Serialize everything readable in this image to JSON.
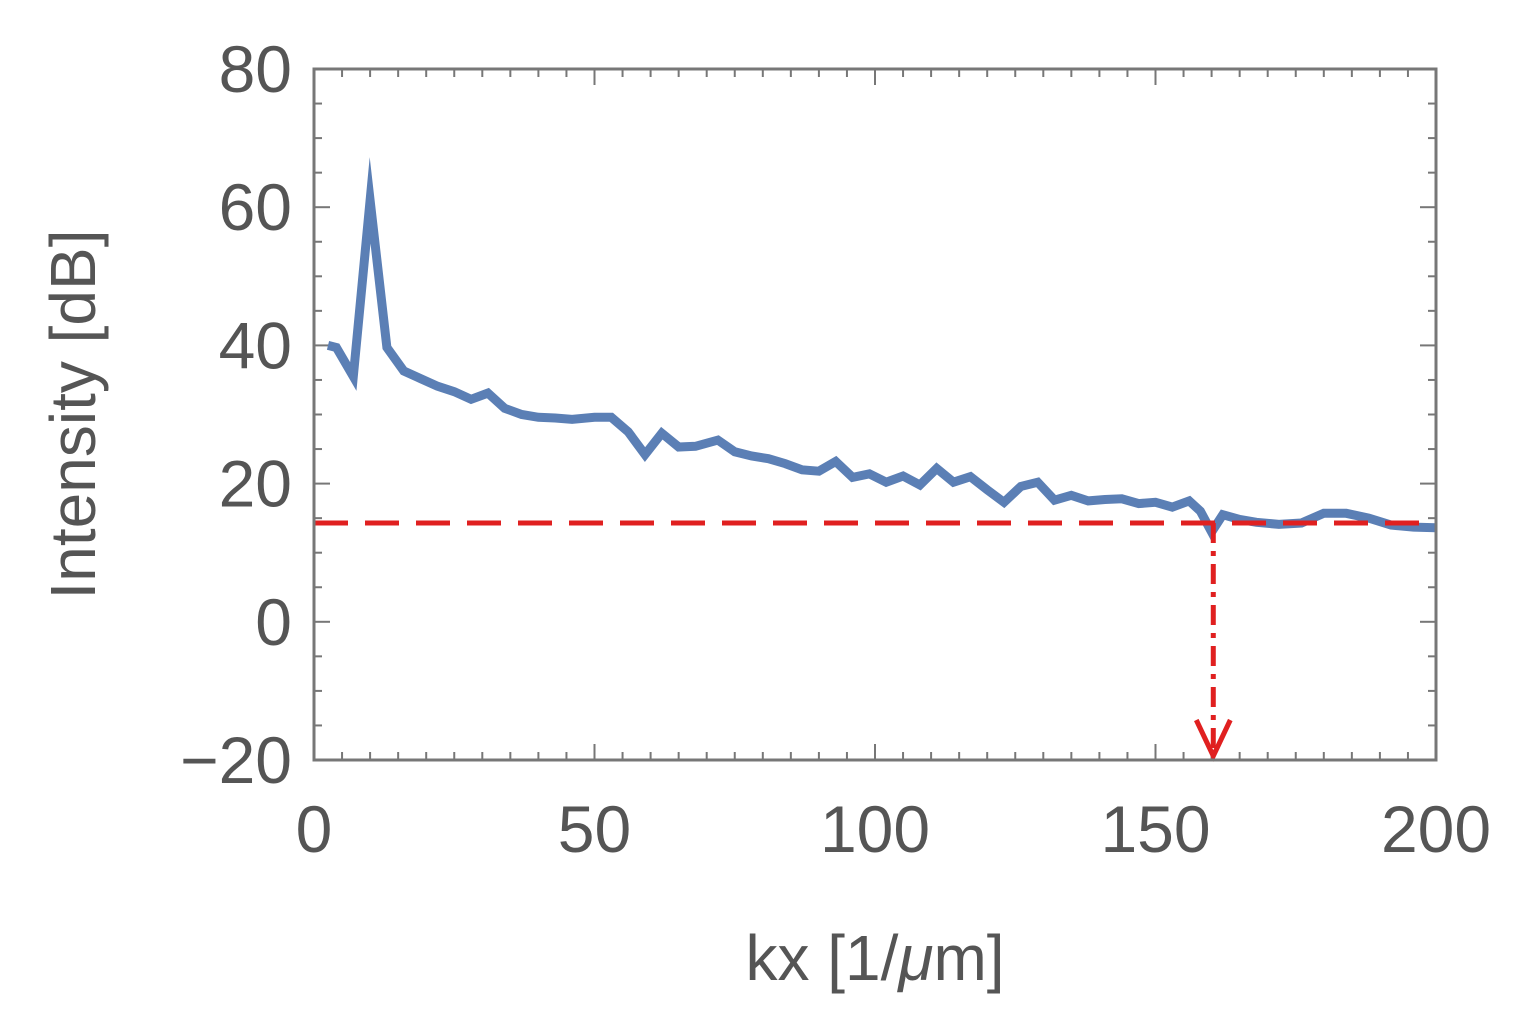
{
  "chart_data": {
    "type": "line",
    "title": "",
    "xlabel_main": "kx  [1/",
    "xlabel_mu": "μ",
    "xlabel_end": "m]",
    "ylabel": "Intensity  [dB]",
    "xlim": [
      0,
      200
    ],
    "ylim": [
      -20,
      80
    ],
    "x_ticks": [
      0,
      50,
      100,
      150,
      200
    ],
    "y_ticks": [
      -20,
      0,
      20,
      40,
      60,
      80
    ],
    "x_tick_labels": [
      "0",
      "50",
      "100",
      "150",
      "200"
    ],
    "y_tick_labels": [
      "−20",
      "0",
      "20",
      "40",
      "60",
      "80"
    ],
    "grid": false,
    "series": [
      {
        "color": "#5b7fb5",
        "x": [
          2.5,
          4,
          7,
          10,
          13,
          16,
          19,
          22,
          25,
          28,
          31,
          34,
          37,
          40,
          43,
          46,
          50,
          53,
          56,
          59,
          62,
          65,
          68,
          72,
          75,
          78,
          81,
          84,
          87,
          90,
          93,
          96,
          99,
          102,
          105,
          108,
          111,
          114,
          117,
          120,
          123,
          126,
          129,
          132,
          135,
          138,
          141,
          144,
          147,
          150,
          153,
          156,
          158,
          160,
          162,
          165,
          168,
          172,
          176,
          180,
          184,
          188,
          192,
          196,
          200
        ],
        "y": [
          40,
          39.7,
          35.5,
          61,
          39.7,
          36.3,
          35.2,
          34.1,
          33.3,
          32.2,
          33.1,
          30.9,
          30,
          29.6,
          29.5,
          29.3,
          29.6,
          29.6,
          27.5,
          24.2,
          27.3,
          25.3,
          25.4,
          26.3,
          24.6,
          24,
          23.6,
          22.9,
          22,
          21.8,
          23.2,
          20.9,
          21.4,
          20.2,
          21.1,
          19.8,
          22.2,
          20.2,
          21,
          19.1,
          17.3,
          19.6,
          20.2,
          17.6,
          18.3,
          17.5,
          17.7,
          17.8,
          17.1,
          17.3,
          16.6,
          17.5,
          16,
          13,
          15.5,
          14.8,
          14.4,
          14.1,
          14.3,
          15.7,
          15.7,
          15,
          14,
          13.7,
          13.6
        ]
      }
    ],
    "threshold": {
      "y": 14.3,
      "color": "#e02020"
    },
    "cutoff": {
      "x": 160.3,
      "color": "#e02020"
    }
  }
}
